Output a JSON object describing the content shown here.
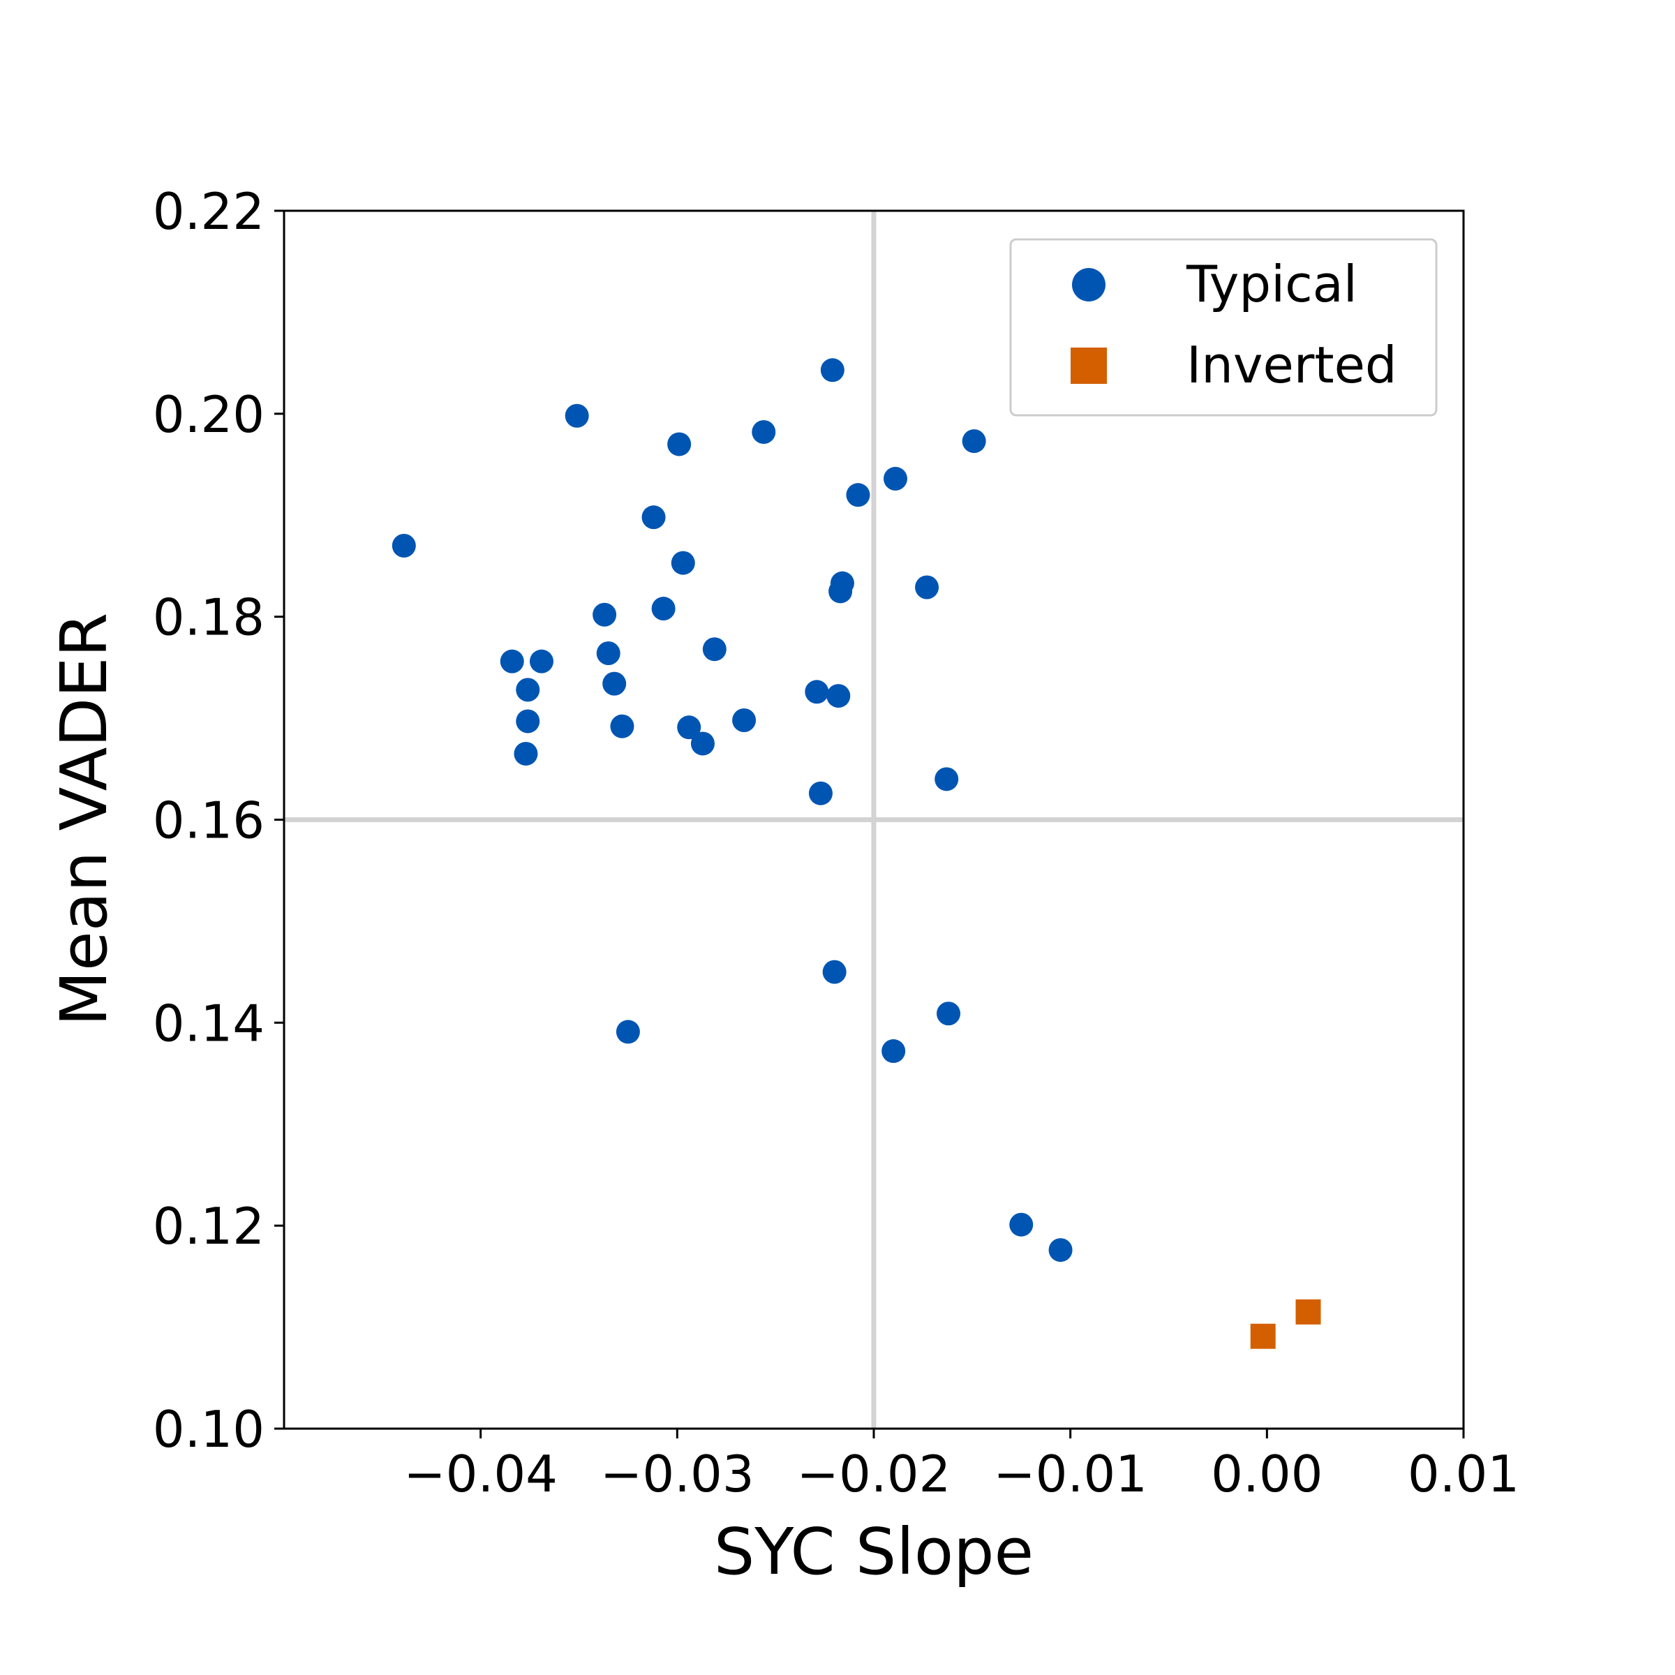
{
  "chart_data": {
    "type": "scatter",
    "xlabel": "SYC Slope",
    "ylabel": "Mean VADER",
    "xlim": [
      -0.05,
      0.01
    ],
    "ylim": [
      0.1,
      0.22
    ],
    "x_ticks": [
      -0.04,
      -0.03,
      -0.02,
      -0.01,
      0.0,
      0.01
    ],
    "x_tick_labels": [
      "−0.04",
      "−0.03",
      "−0.02",
      "−0.01",
      "0.00",
      "0.01"
    ],
    "y_ticks": [
      0.1,
      0.12,
      0.14,
      0.16,
      0.18,
      0.2,
      0.22
    ],
    "y_tick_labels": [
      "0.10",
      "0.12",
      "0.14",
      "0.16",
      "0.18",
      "0.20",
      "0.22"
    ],
    "reference_lines": {
      "x": -0.02,
      "y": 0.16,
      "color": "#d3d3d3"
    },
    "grid": false,
    "legend_position": "top-right",
    "series": [
      {
        "name": "Typical",
        "marker": "circle",
        "color": "#0055b3",
        "points": [
          [
            -0.0439,
            0.187
          ],
          [
            -0.0351,
            0.1998
          ],
          [
            -0.0299,
            0.197
          ],
          [
            -0.0256,
            0.1982
          ],
          [
            -0.0221,
            0.2043
          ],
          [
            -0.0189,
            0.1936
          ],
          [
            -0.0208,
            0.192
          ],
          [
            -0.0149,
            0.1973
          ],
          [
            -0.0312,
            0.1898
          ],
          [
            -0.0297,
            0.1853
          ],
          [
            -0.0216,
            0.1833
          ],
          [
            -0.0217,
            0.1825
          ],
          [
            -0.0173,
            0.1829
          ],
          [
            -0.0337,
            0.1802
          ],
          [
            -0.0307,
            0.1808
          ],
          [
            -0.0335,
            0.1764
          ],
          [
            -0.0384,
            0.1756
          ],
          [
            -0.0369,
            0.1756
          ],
          [
            -0.0281,
            0.1768
          ],
          [
            -0.0376,
            0.1728
          ],
          [
            -0.0332,
            0.1734
          ],
          [
            -0.0229,
            0.1726
          ],
          [
            -0.0218,
            0.1722
          ],
          [
            -0.0376,
            0.1697
          ],
          [
            -0.0328,
            0.1692
          ],
          [
            -0.0294,
            0.1691
          ],
          [
            -0.0266,
            0.1698
          ],
          [
            -0.0287,
            0.1675
          ],
          [
            -0.0377,
            0.1665
          ],
          [
            -0.0163,
            0.164
          ],
          [
            -0.0227,
            0.1626
          ],
          [
            -0.022,
            0.145
          ],
          [
            -0.0162,
            0.1409
          ],
          [
            -0.0325,
            0.1391
          ],
          [
            -0.019,
            0.1372
          ],
          [
            -0.0125,
            0.1201
          ],
          [
            -0.0105,
            0.1176
          ]
        ]
      },
      {
        "name": "Inverted",
        "marker": "square",
        "color": "#d45f00",
        "points": [
          [
            -0.0002,
            0.1091
          ],
          [
            0.0021,
            0.1115
          ]
        ]
      }
    ]
  }
}
